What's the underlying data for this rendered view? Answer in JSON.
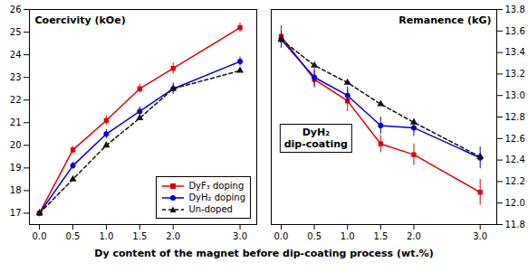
{
  "chart_data": [
    {
      "type": "line",
      "title": "Coercivity (kOe)",
      "xlabel": "Dy content of the magnet before dip-coating process (wt.%)",
      "x": [
        0.0,
        0.5,
        1.0,
        1.5,
        2.0,
        3.0
      ],
      "xlim": [
        -0.15,
        3.25
      ],
      "xticks": [
        {
          "value": 0,
          "label": "0.0"
        },
        0.5,
        {
          "value": 1,
          "label": "1.0"
        },
        1.5,
        {
          "value": 2,
          "label": "2.0"
        },
        {
          "value": 3,
          "label": "3.0"
        }
      ],
      "ylim": [
        16.5,
        26.0
      ],
      "yticks": [
        17,
        18,
        19,
        20,
        21,
        22,
        23,
        24,
        25,
        26
      ],
      "grid": false,
      "legend": "lower right",
      "series": [
        {
          "name": "DyF₃ doping",
          "color": "#dd0000",
          "marker": "square",
          "line_style": "solid",
          "values": [
            17.0,
            19.8,
            21.1,
            22.5,
            23.4,
            25.2
          ],
          "errors": [
            0.15,
            0.15,
            0.2,
            0.2,
            0.25,
            0.2
          ]
        },
        {
          "name": "DyH₂ doping",
          "color": "#0000cc",
          "marker": "circle",
          "line_style": "solid",
          "values": [
            17.0,
            19.1,
            20.5,
            21.5,
            22.5,
            23.7
          ],
          "errors": [
            0.15,
            0.15,
            0.2,
            0.2,
            0.25,
            0.2
          ]
        },
        {
          "name": "Un-doped",
          "color": "#111111",
          "marker": "triangle",
          "line_style": "dashed",
          "values": [
            17.0,
            18.5,
            20.0,
            21.2,
            22.5,
            23.3
          ]
        }
      ]
    },
    {
      "type": "line",
      "title": "Remanence (kG)",
      "annotation": "DyH₂\ndip-coating",
      "x": [
        0.0,
        0.5,
        1.0,
        1.5,
        2.0,
        3.0
      ],
      "xlim": [
        -0.15,
        3.25
      ],
      "xticks": [
        {
          "value": 0,
          "label": "0.0"
        },
        0.5,
        {
          "value": 1,
          "label": "1.0"
        },
        1.5,
        {
          "value": 2,
          "label": "2.0"
        },
        {
          "value": 3,
          "label": "3.0"
        }
      ],
      "y2lim": [
        11.8,
        13.8
      ],
      "y2ticks": [
        11.8,
        {
          "value": 12,
          "label": "12.0"
        },
        12.2,
        12.4,
        12.6,
        12.8,
        {
          "value": 13,
          "label": "13.0"
        },
        13.2,
        13.4,
        13.6,
        13.8
      ],
      "grid": false,
      "series": [
        {
          "name": "DyF₃ doping",
          "color": "#dd0000",
          "marker": "square",
          "line_style": "solid",
          "axis": "y2",
          "values": [
            13.55,
            13.15,
            12.95,
            12.55,
            12.45,
            12.1
          ],
          "errors": [
            0.1,
            0.08,
            0.1,
            0.08,
            0.1,
            0.12
          ]
        },
        {
          "name": "DyH₂ doping",
          "color": "#0000cc",
          "marker": "circle",
          "line_style": "solid",
          "axis": "y2",
          "values": [
            13.52,
            13.17,
            13.0,
            12.72,
            12.7,
            12.42
          ],
          "errors": [
            0.08,
            0.08,
            0.08,
            0.08,
            0.08,
            0.1
          ]
        },
        {
          "name": "Un-doped",
          "color": "#111111",
          "marker": "triangle",
          "line_style": "dashed",
          "axis": "y2",
          "values": [
            13.52,
            13.28,
            13.12,
            12.92,
            12.75,
            12.43
          ]
        }
      ]
    }
  ]
}
